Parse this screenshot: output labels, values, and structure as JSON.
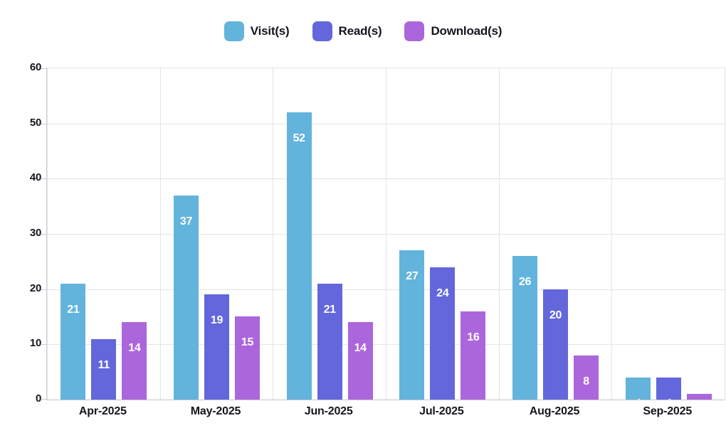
{
  "chart_data": {
    "type": "bar",
    "title": "",
    "xlabel": "",
    "ylabel": "",
    "categories": [
      "Apr-2025",
      "May-2025",
      "Jun-2025",
      "Jul-2025",
      "Aug-2025",
      "Sep-2025"
    ],
    "series": [
      {
        "name": "Visit(s)",
        "color": "#62b4dc",
        "values": [
          21,
          37,
          52,
          27,
          26,
          4
        ]
      },
      {
        "name": "Read(s)",
        "color": "#6367db",
        "values": [
          11,
          19,
          21,
          24,
          20,
          4
        ]
      },
      {
        "name": "Download(s)",
        "color": "#ac66db",
        "values": [
          14,
          15,
          14,
          16,
          8,
          1
        ]
      }
    ],
    "yticks": [
      0,
      10,
      20,
      30,
      40,
      50,
      60
    ],
    "ylim": [
      0,
      60
    ],
    "grid": true,
    "legend_position": "top",
    "bar_value_labels": {
      "visible": true,
      "color": "#ffffff"
    }
  },
  "colors": {
    "background": "#ffffff",
    "gridline": "#e4e4e8",
    "axis_line": "#c9c9ce",
    "text": "#15151d"
  }
}
